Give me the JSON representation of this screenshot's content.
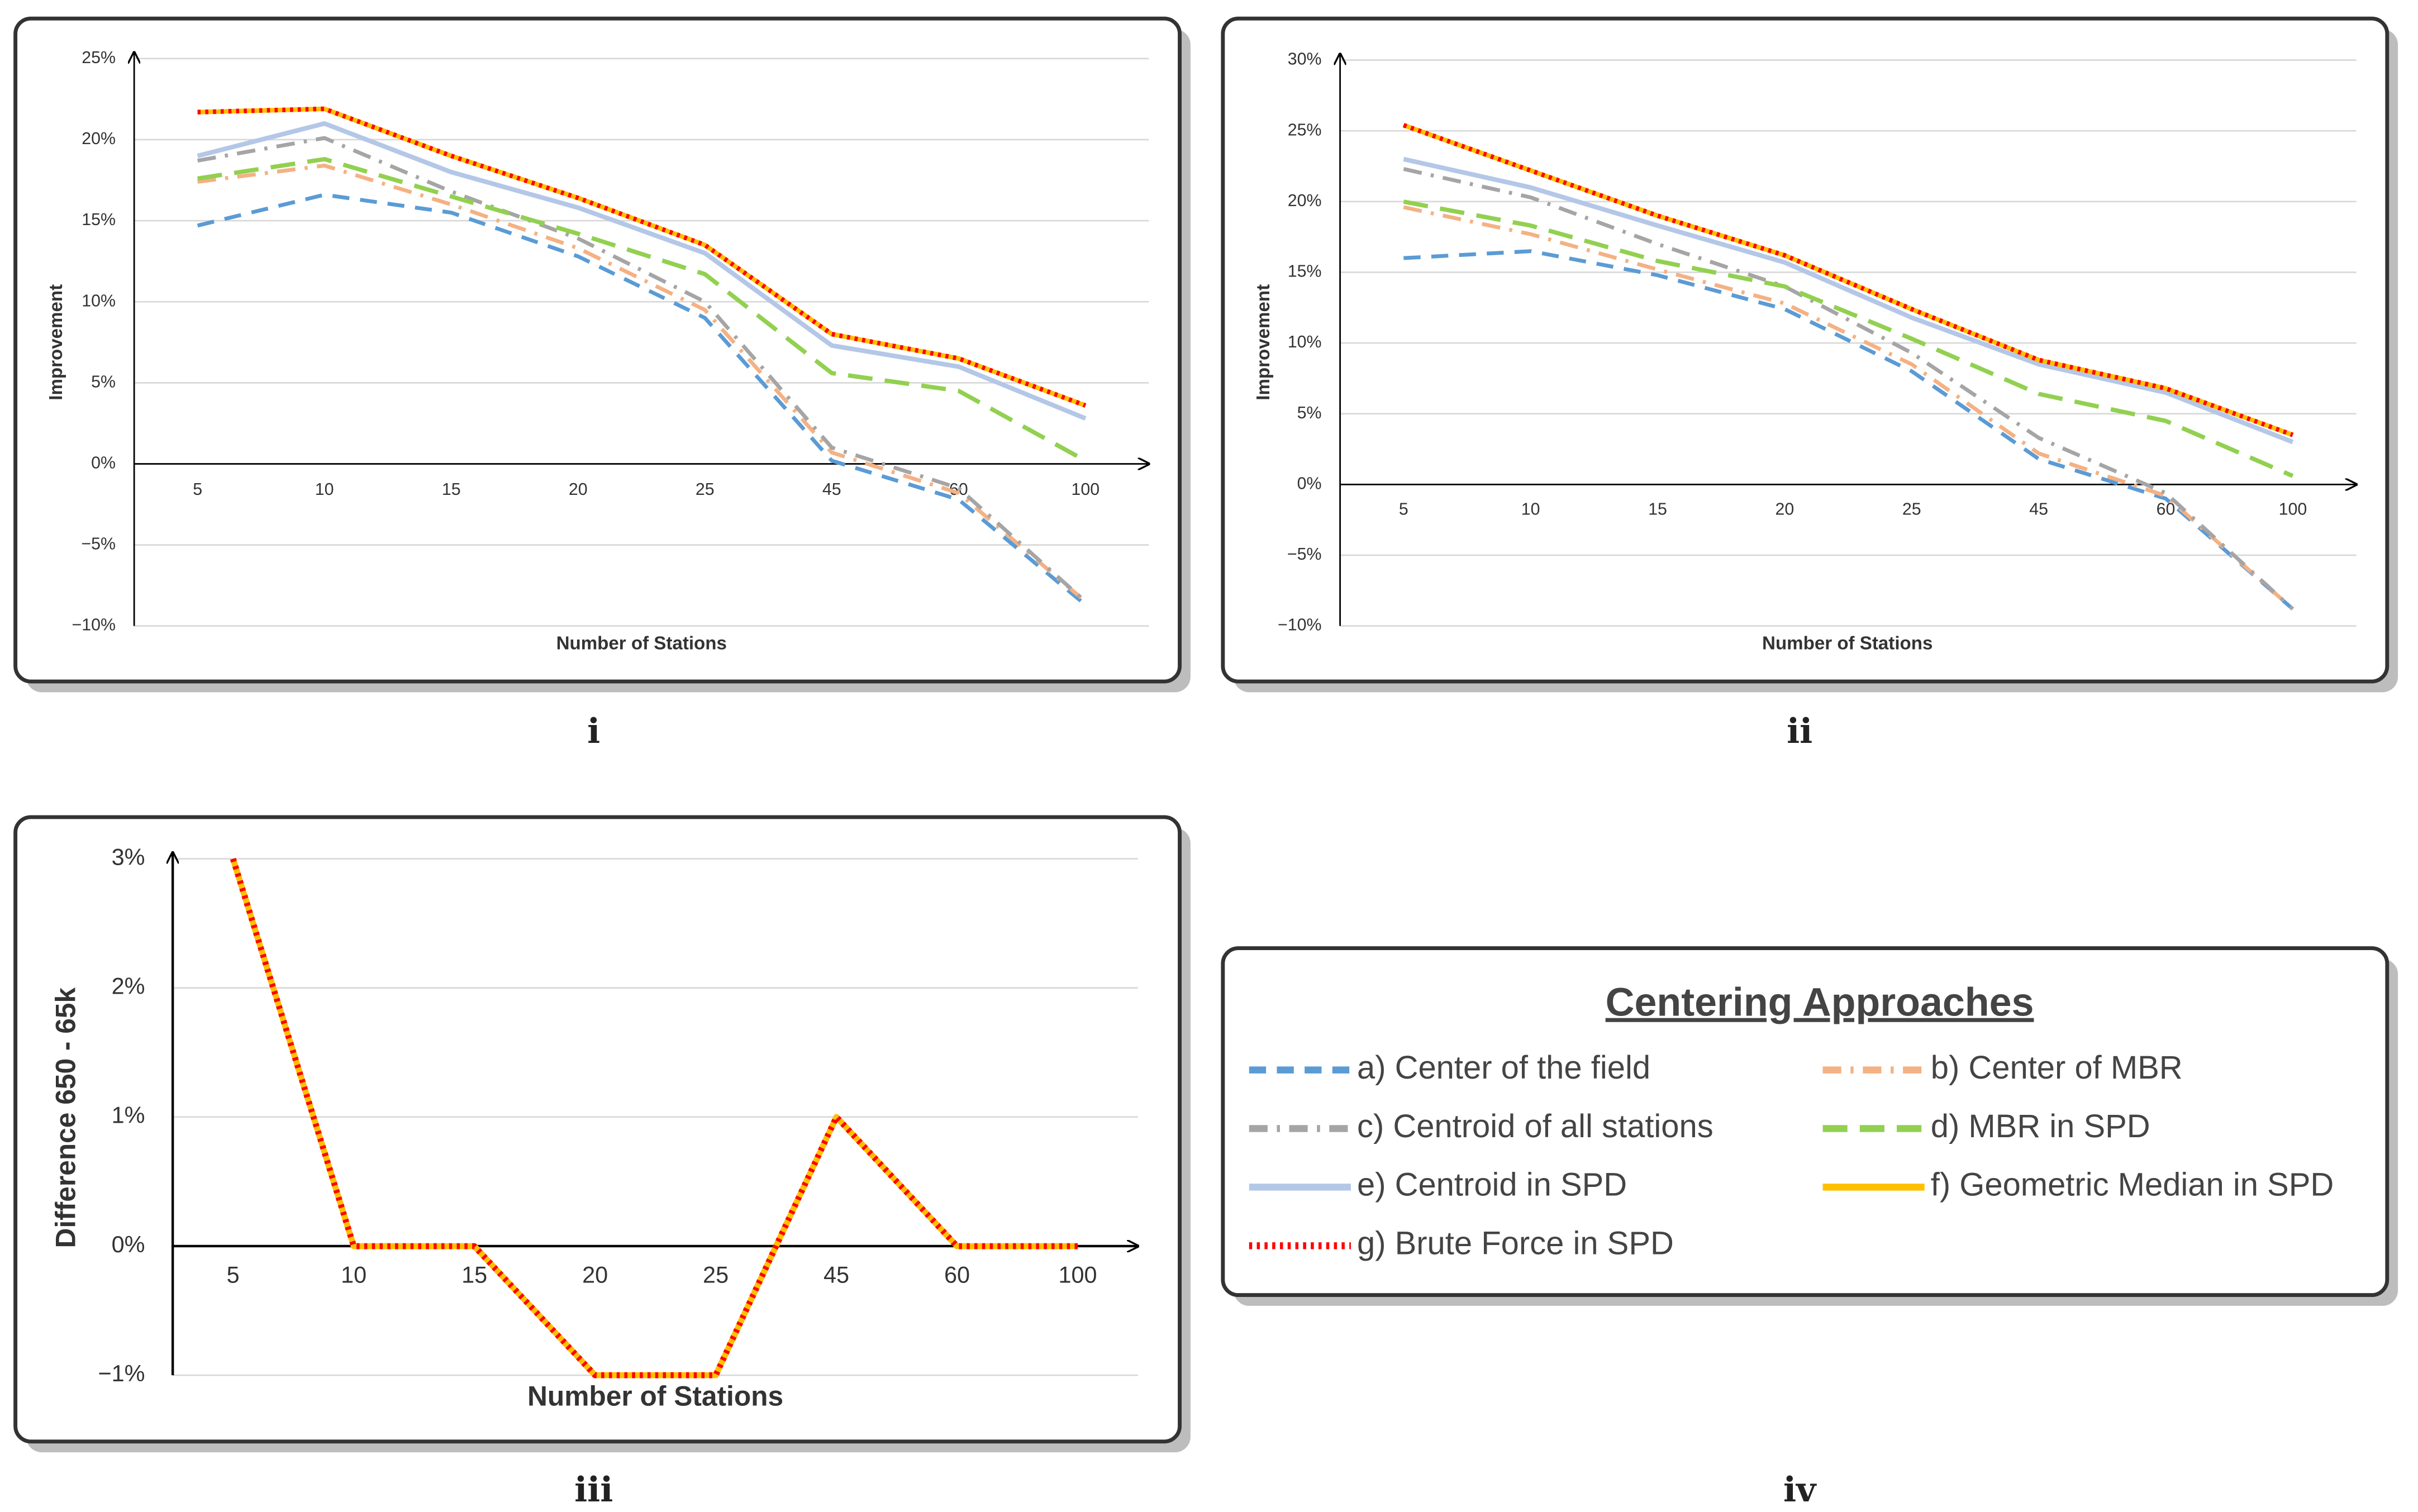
{
  "chart_data": [
    {
      "type": "line",
      "label": "i",
      "y_label": "Improvement",
      "x_label": "Number of Stations",
      "categories": [
        "5",
        "10",
        "15",
        "20",
        "25",
        "45",
        "60",
        "100"
      ],
      "ylim": [
        -10,
        25
      ],
      "yticks": [
        {
          "value": -10,
          "label": "−10%"
        },
        {
          "value": -5,
          "label": "−5%"
        },
        {
          "value": 0,
          "label": "0%"
        },
        {
          "value": 5,
          "label": "5%"
        },
        {
          "value": 10,
          "label": "10%"
        },
        {
          "value": 15,
          "label": "15%"
        },
        {
          "value": 20,
          "label": "20%"
        },
        {
          "value": 25,
          "label": "25%"
        }
      ],
      "grid": true,
      "series": [
        {
          "name": "a) Center of the field",
          "color": "#5B9BD5",
          "style": "dash",
          "values": [
            14.7,
            16.6,
            15.5,
            12.8,
            9.0,
            0.2,
            -2.2,
            -8.7
          ]
        },
        {
          "name": "b) Center of MBR",
          "color": "#F4B183",
          "style": "dash-dot",
          "values": [
            17.4,
            18.4,
            16.0,
            13.3,
            9.5,
            0.7,
            -1.8,
            -8.5
          ]
        },
        {
          "name": "c) Centroid of all stations",
          "color": "#A5A5A5",
          "style": "dash-dot",
          "values": [
            18.7,
            20.1,
            16.8,
            13.9,
            10.0,
            1.0,
            -1.5,
            -8.5
          ]
        },
        {
          "name": "d) MBR in SPD",
          "color": "#92D050",
          "style": "long-dash",
          "values": [
            17.6,
            18.8,
            16.5,
            14.2,
            11.7,
            5.6,
            4.5,
            0.2
          ]
        },
        {
          "name": "e) Centroid in SPD",
          "color": "#B4C7E7",
          "style": "solid",
          "values": [
            19.0,
            21.0,
            18.0,
            15.8,
            13.0,
            7.3,
            6.0,
            2.8
          ]
        },
        {
          "name": "f) Geometric Median in SPD",
          "color": "#FFC000",
          "style": "solid",
          "values": [
            21.7,
            21.9,
            19.0,
            16.4,
            13.5,
            8.0,
            6.5,
            3.6
          ]
        },
        {
          "name": "g) Brute Force in SPD",
          "color": "#FF0000",
          "style": "dot",
          "values": [
            21.7,
            21.9,
            19.0,
            16.4,
            13.5,
            8.0,
            6.5,
            3.6
          ]
        }
      ]
    },
    {
      "type": "line",
      "label": "ii",
      "y_label": "Improvement",
      "x_label": "Number of Stations",
      "categories": [
        "5",
        "10",
        "15",
        "20",
        "25",
        "45",
        "60",
        "100"
      ],
      "ylim": [
        -10,
        30
      ],
      "yticks": [
        {
          "value": -10,
          "label": "−10%"
        },
        {
          "value": -5,
          "label": "−5%"
        },
        {
          "value": 0,
          "label": "0%"
        },
        {
          "value": 5,
          "label": "5%"
        },
        {
          "value": 10,
          "label": "10%"
        },
        {
          "value": 15,
          "label": "15%"
        },
        {
          "value": 20,
          "label": "20%"
        },
        {
          "value": 25,
          "label": "25%"
        },
        {
          "value": 30,
          "label": "30%"
        }
      ],
      "grid": true,
      "series": [
        {
          "color": "#5B9BD5",
          "style": "dash",
          "values": [
            16.0,
            16.5,
            14.8,
            12.4,
            8.0,
            1.8,
            -1.0,
            -8.8
          ]
        },
        {
          "color": "#F4B183",
          "style": "dash-dot",
          "values": [
            19.6,
            17.7,
            15.2,
            12.8,
            8.5,
            2.2,
            -0.8,
            -8.8
          ]
        },
        {
          "color": "#A5A5A5",
          "style": "dash-dot",
          "values": [
            22.3,
            20.3,
            17.0,
            14.0,
            9.3,
            3.3,
            -0.6,
            -8.8
          ]
        },
        {
          "color": "#92D050",
          "style": "long-dash",
          "values": [
            20.0,
            18.3,
            15.8,
            14.0,
            10.3,
            6.4,
            4.5,
            0.6
          ]
        },
        {
          "color": "#B4C7E7",
          "style": "solid",
          "values": [
            23.0,
            21.0,
            18.3,
            15.7,
            11.8,
            8.5,
            6.5,
            3.0
          ]
        },
        {
          "color": "#FFC000",
          "style": "solid",
          "values": [
            25.4,
            22.2,
            19.0,
            16.2,
            12.4,
            8.8,
            6.8,
            3.5
          ]
        },
        {
          "color": "#FF0000",
          "style": "dot",
          "values": [
            25.4,
            22.2,
            19.0,
            16.2,
            12.4,
            8.8,
            6.8,
            3.5
          ]
        }
      ]
    },
    {
      "type": "line",
      "label": "iii",
      "y_label": "Difference 650 - 65k",
      "x_label": "Number of Stations",
      "categories": [
        "5",
        "10",
        "15",
        "20",
        "25",
        "45",
        "60",
        "100"
      ],
      "ylim": [
        -1,
        3
      ],
      "yticks": [
        {
          "value": -1,
          "label": "−1%"
        },
        {
          "value": 0,
          "label": "0%"
        },
        {
          "value": 1,
          "label": "1%"
        },
        {
          "value": 2,
          "label": "2%"
        },
        {
          "value": 3,
          "label": "3%"
        }
      ],
      "grid": true,
      "series": [
        {
          "color": "#FFC000",
          "style": "solid",
          "values": [
            3,
            0,
            0,
            -1,
            -1,
            1,
            0,
            0
          ]
        },
        {
          "color": "#FF0000",
          "style": "dot",
          "values": [
            3,
            0,
            0,
            -1,
            -1,
            1,
            0,
            0
          ]
        }
      ]
    }
  ],
  "legend": {
    "label": "iv",
    "title": "Centering Approaches"
  }
}
